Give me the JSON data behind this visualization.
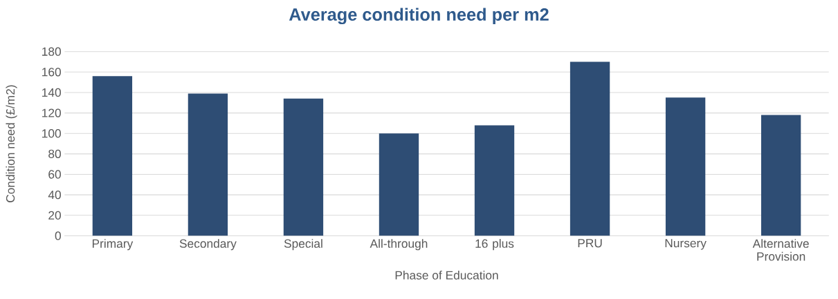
{
  "chart_data": {
    "type": "bar",
    "title": "Average condition need per m2",
    "xlabel": "Phase of Education",
    "ylabel": "Condition need (£/m2)",
    "categories": [
      "Primary",
      "Secondary",
      "Special",
      "All-through",
      "16 plus",
      "PRU",
      "Nursery",
      "Alternative Provision"
    ],
    "values": [
      156,
      139,
      134,
      100,
      108,
      170,
      135,
      118
    ],
    "color": "#2e4d74",
    "ylim": [
      0,
      180
    ],
    "yticks": [
      0,
      20,
      40,
      60,
      80,
      100,
      120,
      140,
      160,
      180
    ],
    "grid": "y"
  }
}
